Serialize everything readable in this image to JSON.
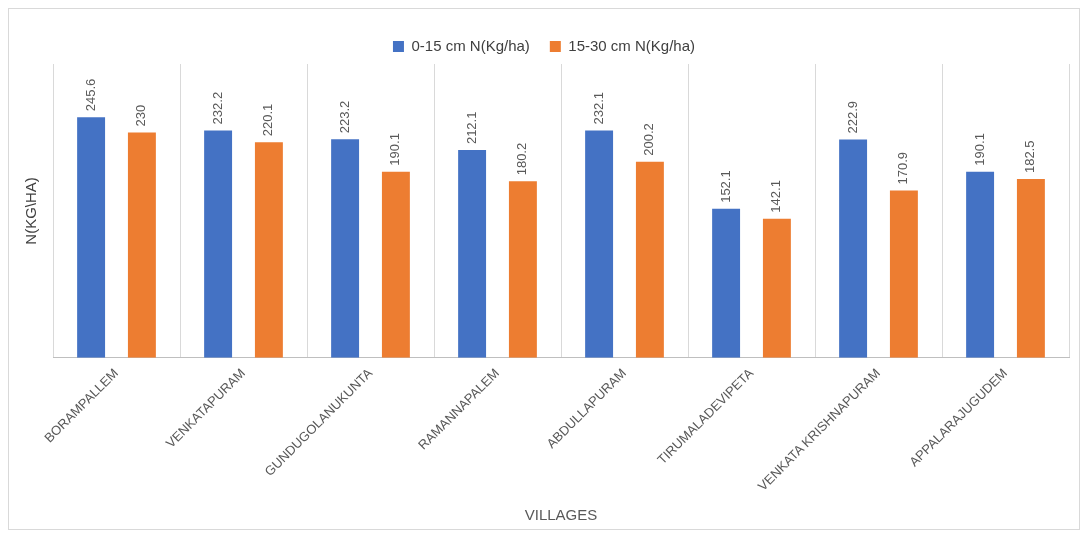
{
  "chart_data": {
    "type": "bar",
    "xlabel": "VILLAGES",
    "ylabel": "N(KG\\HA)",
    "categories": [
      "BORAMPALLEM",
      "VENKATAPURAM",
      "GUNDUGOLANUKUNTA",
      "RAMANNAPALEM",
      "ABDULLAPURAM",
      "TIRUMALADEVIPETA",
      "VENKATA KRISHNAPURAM",
      "APPALARAJUGUDEM"
    ],
    "series": [
      {
        "name": "0-15 cm N(Kg/ha)",
        "color": "#4472c4",
        "values": [
          245.6,
          232.2,
          223.2,
          212.1,
          232.1,
          152.1,
          222.9,
          190.1
        ]
      },
      {
        "name": "15-30 cm N(Kg/ha)",
        "color": "#ed7d31",
        "values": [
          230,
          220.1,
          190.1,
          180.2,
          200.2,
          142.1,
          170.9,
          182.5
        ]
      }
    ],
    "ylim": [
      0,
      300
    ],
    "tick_labels": "x",
    "grid": "x",
    "legend": "top",
    "data_labels": true
  }
}
